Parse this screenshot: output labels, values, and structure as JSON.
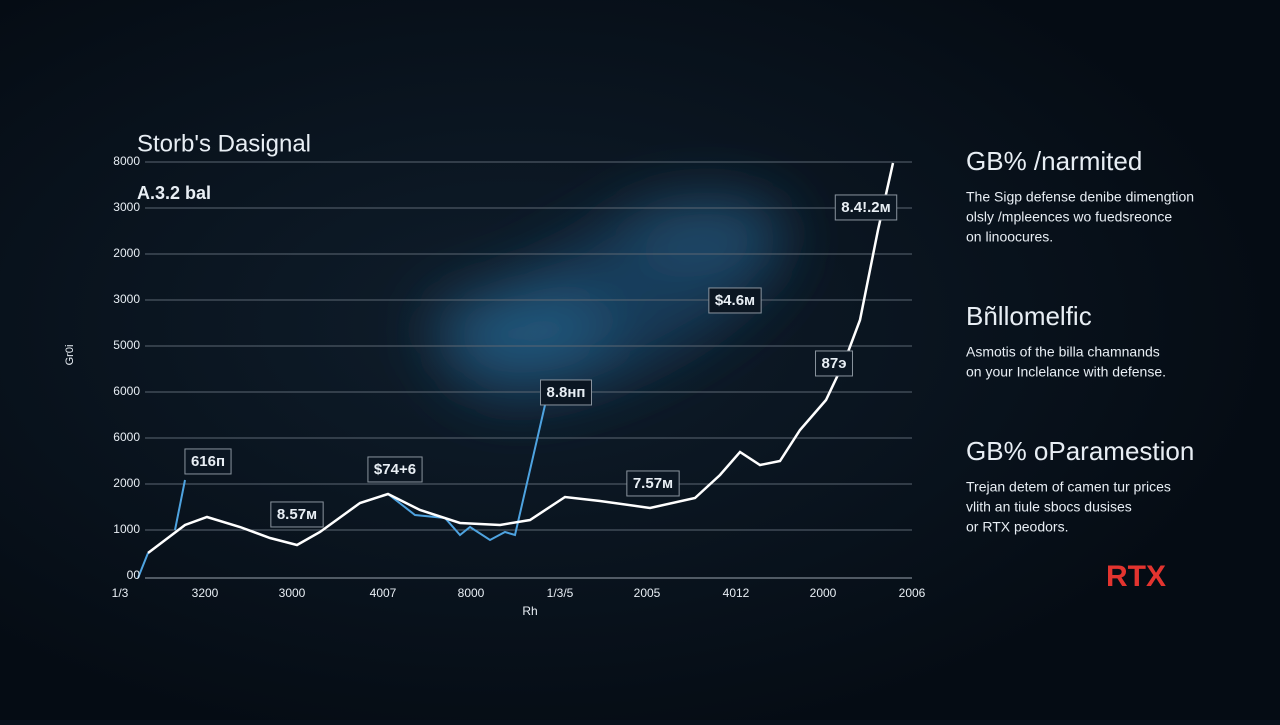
{
  "chart_panel": {
    "title": "Storb's Dasignal",
    "subtitle": "A.3.2 bal",
    "y_axis_label": "Gr0i",
    "x_axis_label": "Rh",
    "y_labels": [
      "8000",
      "3000",
      "2000",
      "3000",
      "5000",
      "6000",
      "6000",
      "2000",
      "1000",
      "00"
    ],
    "x_labels": [
      "1/3",
      "3200",
      "3000",
      "4007",
      "8000",
      "1/3/5",
      "2005",
      "4012",
      "2000",
      "2006"
    ],
    "annotations": [
      "616п",
      "8.57м",
      "$74+6",
      "8.8нп",
      "7.57м",
      "$4.6м",
      "87э",
      "8.4!.2м"
    ]
  },
  "side_panel": {
    "sections": [
      {
        "heading": "GB% /narmited",
        "lines": [
          "The Sigp defense denibe dimengtion",
          "olsly /mpleences wo fuedsreonce",
          "on linoocures."
        ]
      },
      {
        "heading": "Bñllomelfic",
        "lines": [
          "Asmotis of the billa chamnands",
          "on your Inclelance with defense."
        ]
      },
      {
        "heading": "GB% oParamestion",
        "lines": [
          "Trejan detem of camen tur prices",
          "vlith an tiule sbocs dusises",
          "or RTX peodors."
        ]
      }
    ],
    "badge": "RTX"
  }
}
